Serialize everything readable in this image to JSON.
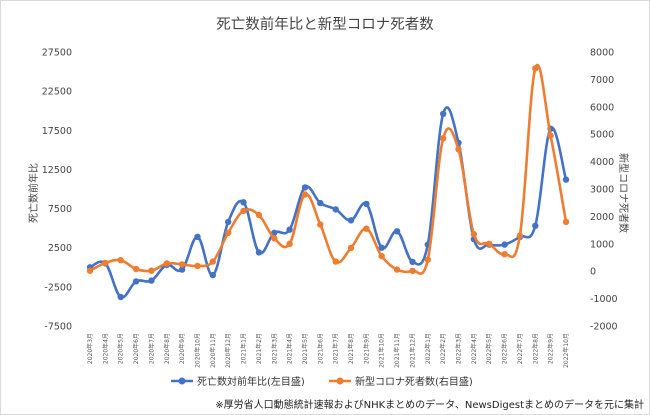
{
  "chart_data": {
    "type": "line",
    "title": "死亡数前年比と新型コロナ死者数",
    "ylabel_left": "死亡数前年比",
    "ylabel_right": "新型コロナ死者数",
    "left_axis": {
      "min": -7500,
      "max": 27500,
      "ticks": [
        -7500,
        -2500,
        2500,
        7500,
        12500,
        17500,
        22500,
        27500
      ]
    },
    "right_axis": {
      "min": -2000,
      "max": 8000,
      "ticks": [
        -2000,
        -1000,
        0,
        1000,
        2000,
        3000,
        4000,
        5000,
        6000,
        7000,
        8000
      ]
    },
    "categories": [
      "2020年3月",
      "2020年4月",
      "2020年5月",
      "2020年6月",
      "2020年7月",
      "2020年8月",
      "2020年9月",
      "2020年10月",
      "2020年11月",
      "2020年12月",
      "2021年1月",
      "2021年2月",
      "2021年3月",
      "2021年4月",
      "2021年5月",
      "2021年6月",
      "2021年7月",
      "2021年8月",
      "2021年9月",
      "2021年10月",
      "2021年11月",
      "2021年12月",
      "2022年1月",
      "2022年2月",
      "2022年3月",
      "2022年4月",
      "2022年5月",
      "2022年6月",
      "2022年7月",
      "2022年8月",
      "2022年9月",
      "2022年10月"
    ],
    "series": [
      {
        "name": "死亡数対前年比(左目盛)",
        "axis": "left",
        "color": "#4472C4",
        "values": [
          0,
          500,
          -3800,
          -1800,
          -1700,
          300,
          -300,
          3900,
          -1000,
          5800,
          8300,
          1900,
          4400,
          4800,
          10200,
          8200,
          7400,
          6000,
          8100,
          2500,
          4600,
          700,
          2900,
          19600,
          15900,
          3600,
          2900,
          2900,
          3900,
          5300,
          17700,
          11200
        ]
      },
      {
        "name": "新型コロナ死者数(右目盛)",
        "axis": "right",
        "color": "#ED7D31",
        "values": [
          20,
          300,
          400,
          80,
          20,
          280,
          250,
          190,
          350,
          1400,
          2200,
          2050,
          1200,
          1000,
          2800,
          1700,
          350,
          850,
          1550,
          550,
          60,
          10,
          420,
          4850,
          4450,
          1350,
          1000,
          620,
          1300,
          7400,
          4950,
          1800
        ]
      }
    ],
    "legend_position": "bottom",
    "grid": false
  },
  "note": "※厚労省人口動態統計速報およびNHKまとめのデータ、NewsDigestまとめのデータを元に集計"
}
